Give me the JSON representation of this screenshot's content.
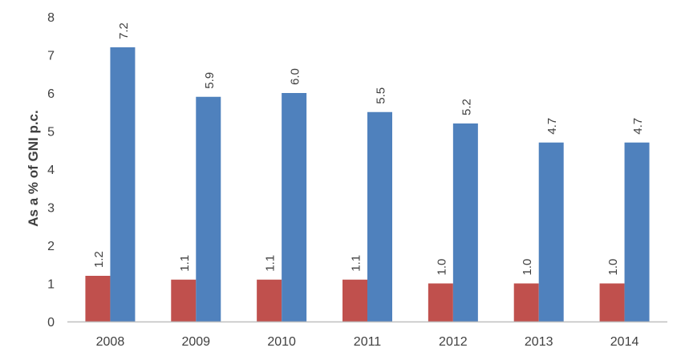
{
  "chart_data": {
    "type": "bar",
    "title": "",
    "xlabel": "",
    "ylabel": "As a % of GNI p.c.",
    "ylim": [
      0,
      8
    ],
    "yticks": [
      0,
      1,
      2,
      3,
      4,
      5,
      6,
      7,
      8
    ],
    "grid": false,
    "legend": "none",
    "categories": [
      "2008",
      "2009",
      "2010",
      "2011",
      "2012",
      "2013",
      "2014"
    ],
    "series": [
      {
        "values": [
          1.2,
          1.1,
          1.1,
          1.1,
          1.0,
          1.0,
          1.0
        ],
        "labels": [
          "1.2",
          "1.1",
          "1.1",
          "1.1",
          "1.0",
          "1.0",
          "1.0"
        ],
        "color": "#c0504d"
      },
      {
        "values": [
          7.2,
          5.9,
          6.0,
          5.5,
          5.2,
          4.7,
          4.7
        ],
        "labels": [
          "7.2",
          "5.9",
          "6.0",
          "5.5",
          "5.2",
          "4.7",
          "4.7"
        ],
        "color": "#4f81bd"
      }
    ],
    "axis_color": "#bfbfbf",
    "text_color": "#404040"
  }
}
